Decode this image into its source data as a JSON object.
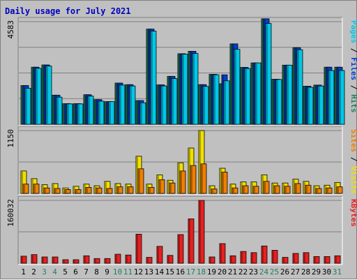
{
  "chart_data": {
    "type": "bar",
    "title": "Daily usage for July 2021",
    "categories": [
      "1",
      "2",
      "3",
      "4",
      "5",
      "6",
      "7",
      "8",
      "9",
      "10",
      "11",
      "12",
      "13",
      "14",
      "15",
      "16",
      "17",
      "18",
      "19",
      "20",
      "21",
      "22",
      "23",
      "24",
      "25",
      "26",
      "27",
      "28",
      "29",
      "30",
      "31"
    ],
    "weekend_days": [
      "3",
      "4",
      "10",
      "11",
      "17",
      "18",
      "24",
      "25",
      "31"
    ],
    "panels": [
      {
        "name": "hits-files-pages",
        "ymax_label": "4583",
        "ymax": 4583,
        "legend": [
          {
            "text": "Pages",
            "color": "#00c8e8"
          },
          {
            "text": " / ",
            "color": "#000000"
          },
          {
            "text": "Files",
            "color": "#0040d0"
          },
          {
            "text": " / ",
            "color": "#000000"
          },
          {
            "text": "Hits",
            "color": "#208060"
          }
        ],
        "series": [
          {
            "name": "Hits",
            "color": "#208060",
            "values": [
              1730,
              2550,
              2650,
              1300,
              920,
              920,
              1320,
              1100,
              1010,
              1840,
              1770,
              1060,
              4250,
              1760,
              2140,
              3150,
              3260,
              1770,
              2230,
              1810,
              3590,
              2540,
              2740,
              4710,
              2010,
              2640,
              3420,
              1700,
              1750,
              2550,
              2550
            ]
          },
          {
            "name": "Files",
            "color": "#0040d0",
            "values": [
              1730,
              2550,
              2650,
              1300,
              920,
              920,
              1320,
              1100,
              1010,
              1840,
              1770,
              1060,
              4250,
              1760,
              2140,
              3150,
              3260,
              1770,
              2230,
              2210,
              3590,
              2540,
              2740,
              4710,
              2010,
              2640,
              3420,
              1700,
              1750,
              2550,
              2550
            ]
          },
          {
            "name": "Pages",
            "color": "#00c8e8",
            "values": [
              1610,
              2500,
              2600,
              1210,
              910,
              910,
              1260,
              1030,
              1010,
              1750,
              1710,
              960,
              4160,
              1710,
              2040,
              3130,
              3160,
              1690,
              2210,
              1940,
              3350,
              2490,
              2740,
              4500,
              2000,
              2640,
              3330,
              1650,
              1710,
              2400,
              2400
            ]
          }
        ]
      },
      {
        "name": "visits-sites",
        "ymax_label": "1150",
        "ymax": 1150,
        "legend": [
          {
            "text": "Sites",
            "color": "#f08000"
          },
          {
            "text": " / ",
            "color": "#000000"
          },
          {
            "text": "Visits",
            "color": "#f0e000"
          }
        ],
        "series": [
          {
            "name": "Visits",
            "color": "#f0e000",
            "values": [
              410,
              270,
              160,
              180,
              100,
              130,
              170,
              140,
              220,
              180,
              170,
              680,
              170,
              340,
              240,
              560,
              830,
              1150,
              140,
              460,
              170,
              210,
              210,
              340,
              190,
              190,
              260,
              220,
              140,
              150,
              200
            ]
          },
          {
            "name": "Sites",
            "color": "#f08000",
            "values": [
              170,
              170,
              100,
              90,
              70,
              70,
              110,
              100,
              90,
              120,
              120,
              450,
              110,
              250,
              190,
              410,
              510,
              540,
              80,
              390,
              100,
              140,
              130,
              220,
              140,
              130,
              180,
              150,
              90,
              100,
              120
            ]
          }
        ]
      },
      {
        "name": "kbytes",
        "ymax_label": "160032",
        "ymax": 160032,
        "legend": [
          {
            "text": "KBytes",
            "color": "#e82020"
          }
        ],
        "series": [
          {
            "name": "KBytes",
            "color": "#e82020",
            "values": [
              18000,
              22000,
              16000,
              16000,
              9000,
              9000,
              19000,
              12000,
              12000,
              23000,
              21000,
              74000,
              15000,
              43000,
              20000,
              73000,
              113000,
              160032,
              16000,
              50000,
              19000,
              30000,
              27000,
              44000,
              33000,
              15000,
              25000,
              27000,
              17000,
              17000,
              19000
            ]
          }
        ]
      }
    ],
    "grid": true
  }
}
